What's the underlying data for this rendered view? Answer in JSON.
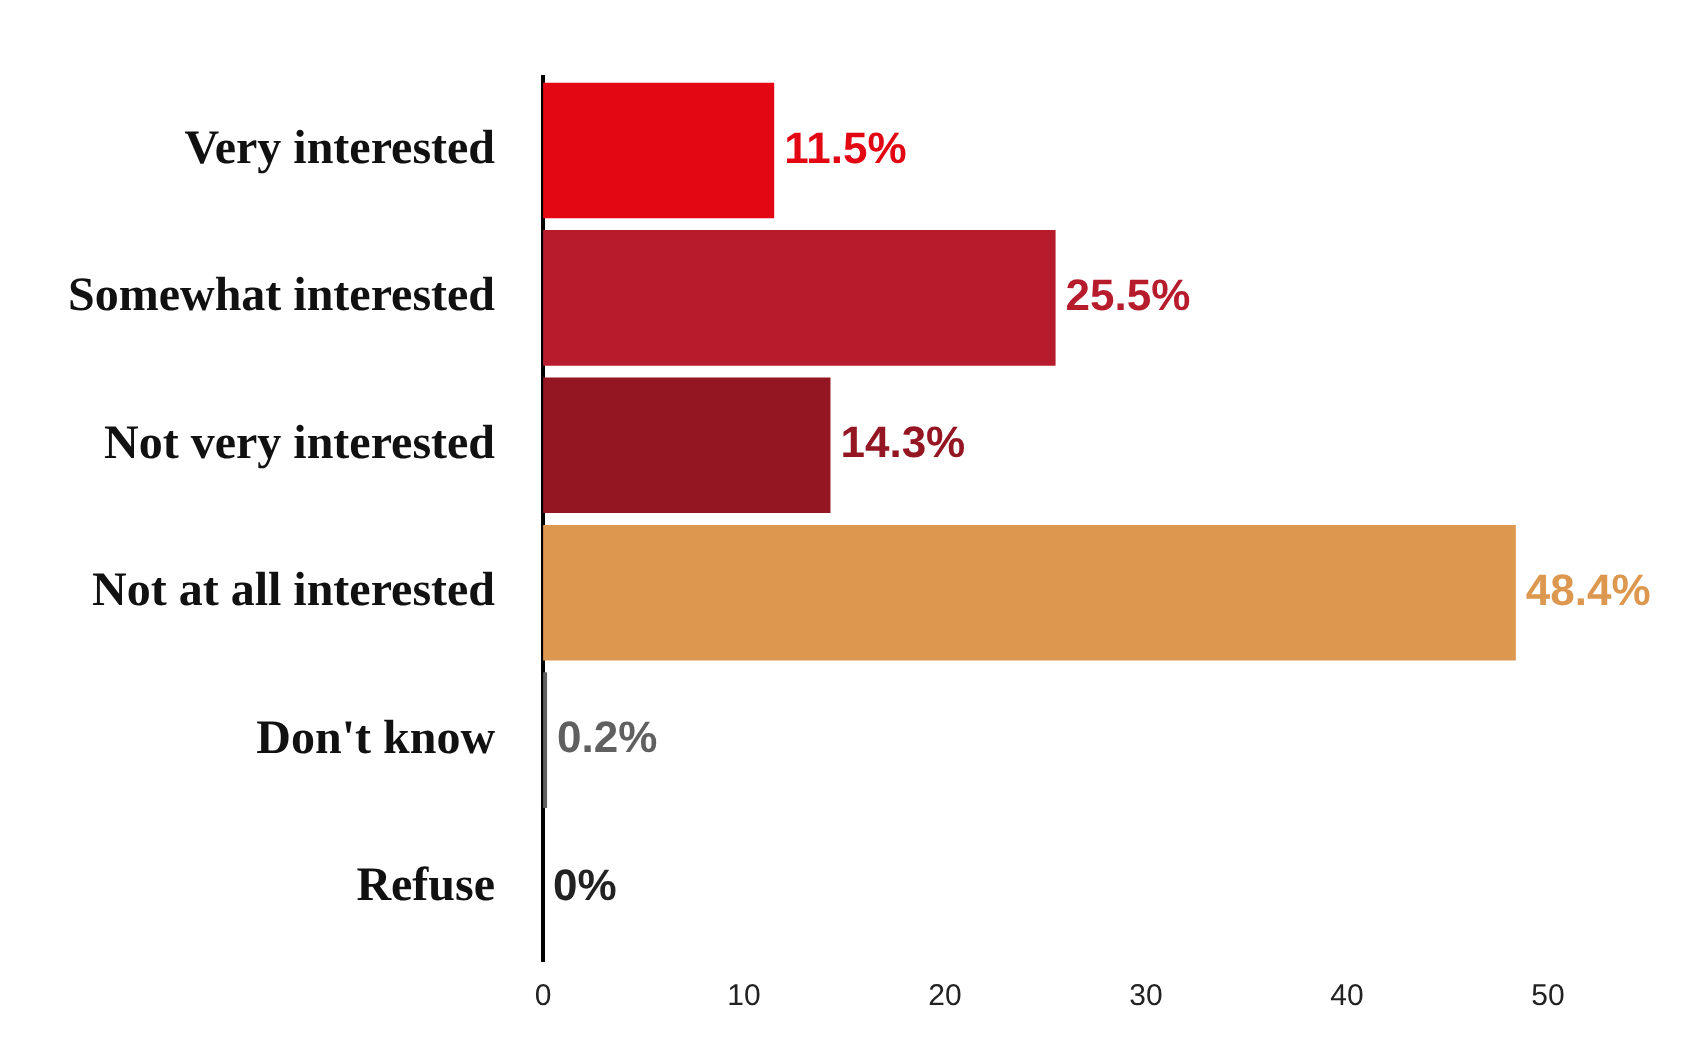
{
  "chart_data": {
    "type": "bar",
    "orientation": "horizontal",
    "categories": [
      "Very interested",
      "Somewhat interested",
      "Not very interested",
      "Not at all interested",
      "Don't know",
      "Refuse"
    ],
    "values": [
      11.5,
      25.5,
      14.3,
      48.4,
      0.2,
      0
    ],
    "colors": [
      "#e30613",
      "#b71c2c",
      "#931622",
      "#dd9850",
      "#606060",
      "#222222"
    ],
    "value_labels": [
      "11.5%",
      "25.5%",
      "14.3%",
      "48.4%",
      "0.2%",
      "0%"
    ],
    "xlim": [
      0,
      50
    ],
    "xticks": [
      0,
      10,
      20,
      30,
      40,
      50
    ],
    "grid": false,
    "legend": false
  }
}
